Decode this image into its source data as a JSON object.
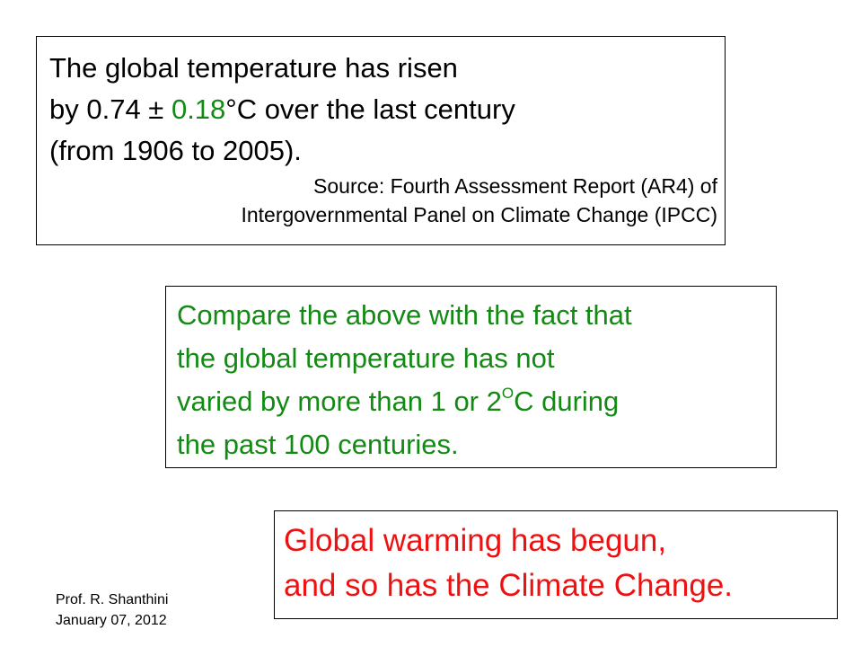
{
  "box1": {
    "line1": "The global temperature has risen",
    "line2": {
      "before": "by 0.74 ±",
      "highlight": "0.18",
      "after": "°C over the last century"
    },
    "line3": "(from 1906 to 2005).",
    "source": [
      "Source: Fourth Assessment Report (AR4) of",
      "Intergovernmental Panel on Climate Change (IPCC)"
    ]
  },
  "box2": {
    "line1": "Compare the above with the fact that",
    "line2": "the global temperature has not",
    "line3": {
      "before": "varied by more than 1 or 2",
      "superscript": "O",
      "after": "C during"
    },
    "line4": "the past 100 centuries."
  },
  "box3": {
    "lines": [
      "Global warming has begun,",
      "and so has the Climate Change."
    ]
  },
  "footer": {
    "author": "Prof. R. Shanthini",
    "date": "January 07, 2012"
  }
}
